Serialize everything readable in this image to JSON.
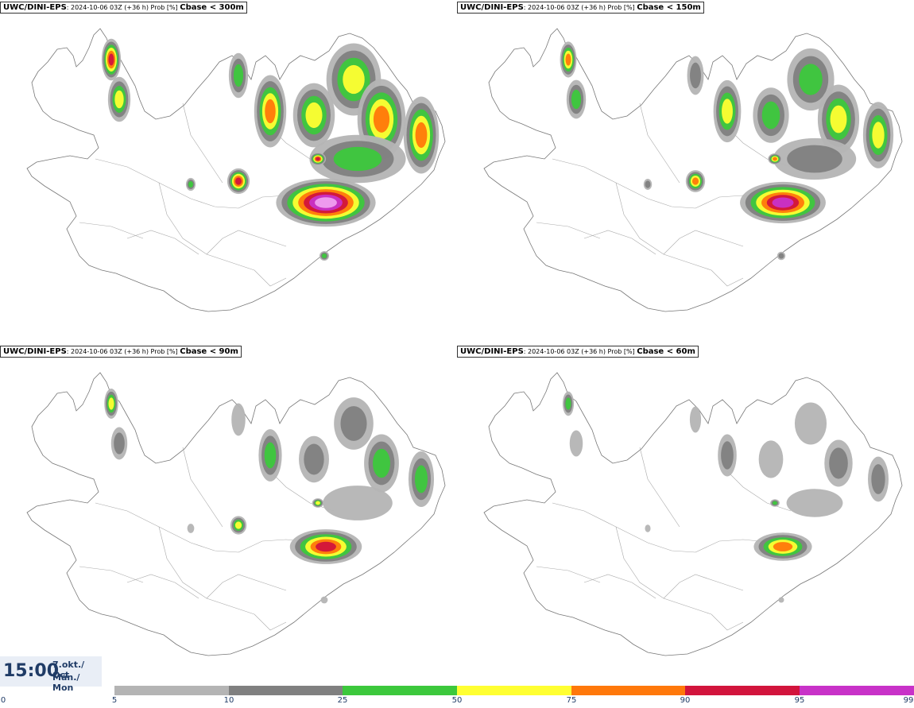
{
  "panels": [
    {
      "model": "UWC/DINI-EPS",
      "info": ": 2024-10-06 03Z (+36 h) Prob [%] ",
      "threshold": "Cbase < 300m"
    },
    {
      "model": "UWC/DINI-EPS",
      "info": ": 2024-10-06 03Z (+36 h) Prob [%] ",
      "threshold": "Cbase < 150m"
    },
    {
      "model": "UWC/DINI-EPS",
      "info": ": 2024-10-06 03Z (+36 h) Prob [%] ",
      "threshold": "Cbase < 90m"
    },
    {
      "model": "UWC/DINI-EPS",
      "info": ": 2024-10-06 03Z (+36 h) Prob [%] ",
      "threshold": "Cbase < 60m"
    }
  ],
  "time": {
    "clock": "15:00",
    "date_line1": "7.okt./ Oct",
    "date_line2": "Mán./ Mon"
  },
  "colorbar": {
    "ticks": [
      "0",
      "5",
      "10",
      "25",
      "50",
      "75",
      "90",
      "95",
      "99"
    ],
    "colors": [
      "#ffffff",
      "#b4b4b4",
      "#808080",
      "#3cc83c",
      "#ffff32",
      "#ff780a",
      "#d2143c",
      "#c832c8",
      "#f0a0f0"
    ]
  }
}
